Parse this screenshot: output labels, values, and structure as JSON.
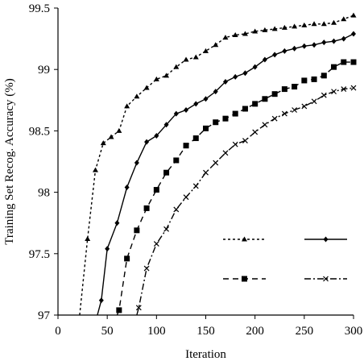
{
  "chart_data": {
    "type": "line",
    "xlabel": "Iteration",
    "ylabel": "Training Set Recog. Accuracy (%)",
    "xlim": [
      0,
      300
    ],
    "ylim": [
      97,
      99.5
    ],
    "x_ticks": [
      0,
      50,
      100,
      150,
      200,
      250,
      300
    ],
    "y_ticks": [
      97,
      97.5,
      98,
      98.5,
      99,
      99.5
    ],
    "y_tick_labels": [
      "97",
      "97.5",
      "98",
      "98.5",
      "99",
      "99.5"
    ],
    "grid": false,
    "legend": "lower-right, four unlabeled line-style samples",
    "series": [
      {
        "style": "dashed-triangle",
        "x": [
          22,
          30,
          38,
          46,
          54,
          62,
          70,
          80,
          90,
          100,
          110,
          120,
          130,
          140,
          150,
          160,
          170,
          180,
          190,
          200,
          210,
          220,
          230,
          240,
          250,
          260,
          270,
          280,
          290,
          300
        ],
        "y": [
          97.0,
          97.62,
          98.18,
          98.4,
          98.45,
          98.5,
          98.7,
          98.78,
          98.85,
          98.92,
          98.95,
          99.02,
          99.08,
          99.1,
          99.15,
          99.2,
          99.26,
          99.28,
          99.29,
          99.31,
          99.32,
          99.33,
          99.34,
          99.35,
          99.36,
          99.37,
          99.37,
          99.38,
          99.41,
          99.44
        ]
      },
      {
        "style": "solid-diamond",
        "x": [
          40,
          44,
          50,
          60,
          70,
          80,
          90,
          100,
          110,
          120,
          130,
          140,
          150,
          160,
          170,
          180,
          190,
          200,
          210,
          220,
          230,
          240,
          250,
          260,
          270,
          280,
          290,
          300
        ],
        "y": [
          97.0,
          97.12,
          97.54,
          97.75,
          98.04,
          98.24,
          98.41,
          98.46,
          98.55,
          98.64,
          98.67,
          98.72,
          98.76,
          98.82,
          98.9,
          98.94,
          98.97,
          99.02,
          99.08,
          99.12,
          99.15,
          99.17,
          99.19,
          99.2,
          99.22,
          99.23,
          99.25,
          99.29
        ]
      },
      {
        "style": "dashed-square",
        "x": [
          60,
          62,
          70,
          80,
          90,
          100,
          110,
          120,
          130,
          140,
          150,
          160,
          170,
          180,
          190,
          200,
          210,
          220,
          230,
          240,
          250,
          260,
          270,
          280,
          290,
          300
        ],
        "y": [
          97.0,
          97.04,
          97.46,
          97.69,
          97.87,
          98.02,
          98.16,
          98.26,
          98.38,
          98.44,
          98.52,
          98.57,
          98.6,
          98.64,
          98.68,
          98.72,
          98.76,
          98.8,
          98.84,
          98.86,
          98.91,
          98.92,
          98.95,
          99.02,
          99.06,
          99.06
        ]
      },
      {
        "style": "dash-dot-x",
        "x": [
          80,
          82,
          90,
          100,
          110,
          120,
          130,
          140,
          150,
          160,
          170,
          180,
          190,
          200,
          210,
          220,
          230,
          240,
          250,
          260,
          270,
          280,
          290,
          300
        ],
        "y": [
          97.0,
          97.06,
          97.38,
          97.58,
          97.7,
          97.86,
          97.96,
          98.05,
          98.16,
          98.24,
          98.32,
          98.39,
          98.42,
          98.49,
          98.55,
          98.6,
          98.64,
          98.67,
          98.7,
          98.74,
          98.79,
          98.82,
          98.84,
          98.85
        ]
      }
    ]
  }
}
